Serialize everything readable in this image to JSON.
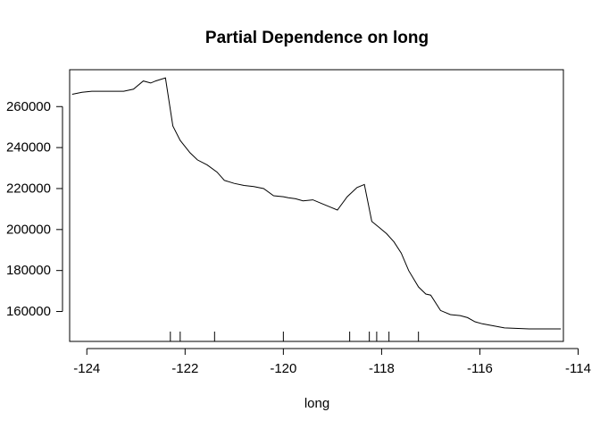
{
  "chart_data": {
    "type": "line",
    "title": "Partial Dependence on long",
    "xlabel": "long",
    "ylabel": "",
    "xlim": [
      -124.35,
      -114.3
    ],
    "ylim": [
      145400,
      278000
    ],
    "xticks": [
      -124,
      -122,
      -120,
      -118,
      -116,
      -114
    ],
    "yticks": [
      160000,
      180000,
      200000,
      220000,
      240000,
      260000
    ],
    "xtick_labels": [
      "-124",
      "-122",
      "-120",
      "-118",
      "-116",
      "-114"
    ],
    "ytick_labels": [
      "160000",
      "180000",
      "200000",
      "220000",
      "240000",
      "260000"
    ],
    "grid": false,
    "legend": "none",
    "line_color": "#000000",
    "series": [
      {
        "x": [
          -124.3,
          -124.1,
          -123.9,
          -123.7,
          -123.5,
          -123.25,
          -123.05,
          -122.85,
          -122.7,
          -122.6,
          -122.4,
          -122.25,
          -122.1,
          -121.9,
          -121.75,
          -121.55,
          -121.35,
          -121.2,
          -121.0,
          -120.8,
          -120.6,
          -120.4,
          -120.2,
          -120.0,
          -119.9,
          -119.75,
          -119.6,
          -119.4,
          -119.2,
          -119.05,
          -118.9,
          -118.7,
          -118.5,
          -118.35,
          -118.2,
          -118.05,
          -117.9,
          -117.75,
          -117.6,
          -117.45,
          -117.25,
          -117.1,
          -117.0,
          -116.8,
          -116.6,
          -116.4,
          -116.25,
          -116.1,
          -115.95,
          -115.5,
          -115.0,
          -114.7,
          -114.35
        ],
        "y": [
          266000,
          267000,
          267500,
          267500,
          267500,
          267500,
          268500,
          272500,
          271500,
          272500,
          274000,
          250500,
          243500,
          237500,
          234000,
          231500,
          228000,
          224000,
          222500,
          221500,
          221000,
          220000,
          216500,
          216000,
          215500,
          215000,
          214000,
          214500,
          212500,
          211000,
          209500,
          216000,
          220500,
          222000,
          204000,
          201000,
          198000,
          194000,
          188500,
          180000,
          172000,
          168500,
          168000,
          160500,
          158500,
          158000,
          157000,
          155000,
          154000,
          152000,
          151500,
          151500,
          151500
        ]
      }
    ],
    "rug": [
      -122.3,
      -122.1,
      -121.4,
      -120.0,
      -118.65,
      -118.25,
      -118.1,
      -117.85,
      -117.25
    ]
  }
}
